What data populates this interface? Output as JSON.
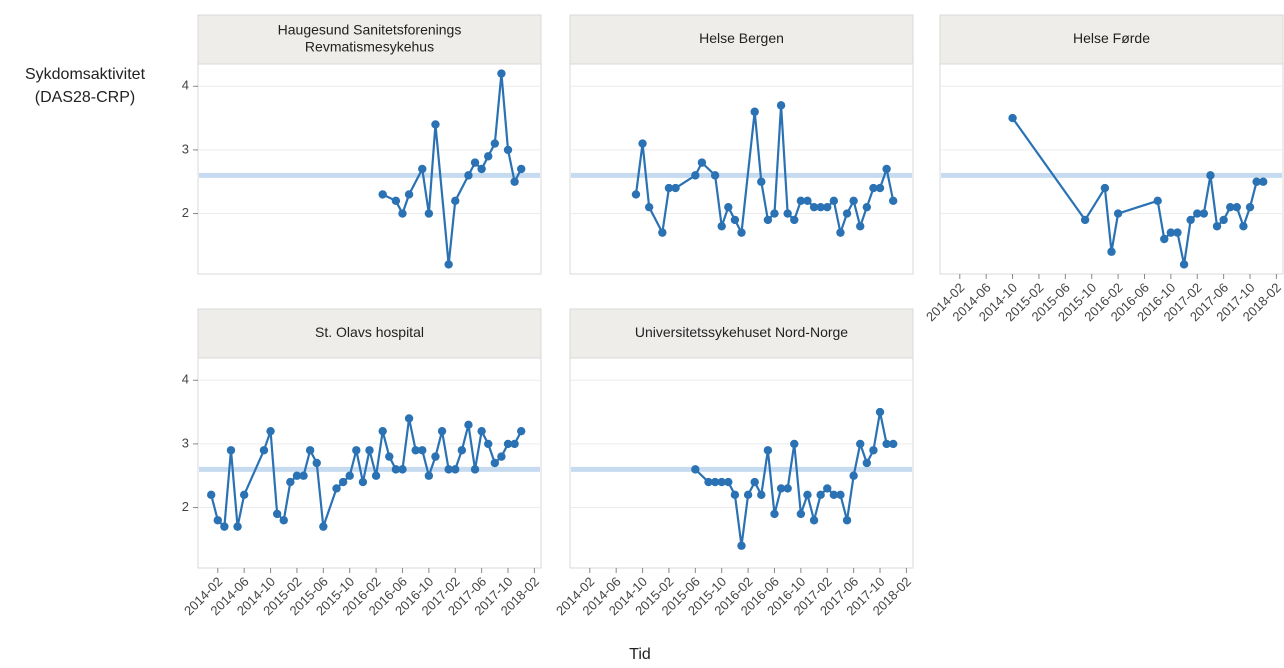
{
  "y_label": [
    "Sykdomsaktivitet",
    "(DAS28-CRP)"
  ],
  "x_label": "Tid",
  "reference_line": 2.6,
  "chart_data": [
    {
      "type": "line",
      "title": [
        "Haugesund Sanitetsforenings",
        "Revmatismesykehus"
      ],
      "color": "#2a72b3",
      "x": [
        "2016-03",
        "2016-05",
        "2016-06",
        "2016-07",
        "2016-09",
        "2016-10",
        "2016-11",
        "2017-01",
        "2017-02",
        "2017-04",
        "2017-05",
        "2017-06",
        "2017-07",
        "2017-08",
        "2017-09",
        "2017-10",
        "2017-11",
        "2017-12"
      ],
      "values": [
        2.3,
        2.2,
        2.0,
        2.3,
        2.7,
        2.0,
        3.4,
        1.2,
        2.2,
        2.6,
        2.8,
        2.7,
        2.9,
        3.1,
        4.2,
        3.0,
        2.5,
        2.7
      ],
      "xlim": [
        "2013-11",
        "2018-03"
      ],
      "ylim": [
        1.05,
        4.35
      ],
      "yticks": [
        2,
        3,
        4
      ],
      "y_tick_labels": true,
      "grid": true
    },
    {
      "type": "line",
      "title": "Helse Bergen",
      "color": "#2a72b3",
      "x": [
        "2014-09",
        "2014-10",
        "2014-11",
        "2015-01",
        "2015-02",
        "2015-03",
        "2015-06",
        "2015-07",
        "2015-09",
        "2015-10",
        "2015-11",
        "2015-12",
        "2016-01",
        "2016-03",
        "2016-04",
        "2016-05",
        "2016-06",
        "2016-07",
        "2016-08",
        "2016-09",
        "2016-10",
        "2016-11",
        "2016-12",
        "2017-01",
        "2017-02",
        "2017-03",
        "2017-04",
        "2017-05",
        "2017-06",
        "2017-07",
        "2017-08",
        "2017-09",
        "2017-10",
        "2017-11",
        "2017-12"
      ],
      "values": [
        2.3,
        3.1,
        2.1,
        1.7,
        2.4,
        2.4,
        2.6,
        2.8,
        2.6,
        1.8,
        2.1,
        1.9,
        1.7,
        3.6,
        2.5,
        1.9,
        2.0,
        3.7,
        2.0,
        1.9,
        2.2,
        2.2,
        2.1,
        2.1,
        2.1,
        2.2,
        1.7,
        2.0,
        2.2,
        1.8,
        2.1,
        2.4,
        2.4,
        2.7,
        2.2
      ],
      "xlim": [
        "2013-11",
        "2018-03"
      ],
      "ylim": [
        1.05,
        4.35
      ],
      "yticks": [
        2,
        3,
        4
      ],
      "y_tick_labels": false,
      "grid": true
    },
    {
      "type": "line",
      "title": "Helse Førde",
      "color": "#2a72b3",
      "x": [
        "2014-10",
        "2015-09",
        "2015-12",
        "2016-01",
        "2016-02",
        "2016-08",
        "2016-09",
        "2016-10",
        "2016-11",
        "2016-12",
        "2017-01",
        "2017-02",
        "2017-03",
        "2017-04",
        "2017-05",
        "2017-06",
        "2017-07",
        "2017-08",
        "2017-09",
        "2017-10",
        "2017-11",
        "2017-12"
      ],
      "values": [
        3.5,
        1.9,
        2.4,
        1.4,
        2.0,
        2.2,
        1.6,
        1.7,
        1.7,
        1.2,
        1.9,
        2.0,
        2.0,
        2.6,
        1.8,
        1.9,
        2.1,
        2.1,
        1.8,
        2.1,
        2.5,
        2.5
      ],
      "xlim": [
        "2013-11",
        "2018-03"
      ],
      "xticks": [
        "2014-02",
        "2014-06",
        "2014-10",
        "2015-02",
        "2015-06",
        "2015-10",
        "2016-02",
        "2016-06",
        "2016-10",
        "2017-02",
        "2017-06",
        "2017-10",
        "2018-02"
      ],
      "ylim": [
        1.05,
        4.35
      ],
      "yticks": [
        2,
        3,
        4
      ],
      "y_tick_labels": false,
      "grid": true
    },
    {
      "type": "line",
      "title": "St. Olavs hospital",
      "color": "#2a72b3",
      "x": [
        "2014-01",
        "2014-02",
        "2014-03",
        "2014-04",
        "2014-05",
        "2014-06",
        "2014-09",
        "2014-10",
        "2014-11",
        "2014-12",
        "2015-01",
        "2015-02",
        "2015-03",
        "2015-04",
        "2015-05",
        "2015-06",
        "2015-08",
        "2015-09",
        "2015-10",
        "2015-11",
        "2015-12",
        "2016-01",
        "2016-02",
        "2016-03",
        "2016-04",
        "2016-05",
        "2016-06",
        "2016-07",
        "2016-08",
        "2016-09",
        "2016-10",
        "2016-11",
        "2016-12",
        "2017-01",
        "2017-02",
        "2017-03",
        "2017-04",
        "2017-05",
        "2017-06",
        "2017-07",
        "2017-08",
        "2017-09",
        "2017-10",
        "2017-11",
        "2017-12"
      ],
      "values": [
        2.2,
        1.8,
        1.7,
        2.9,
        1.7,
        2.2,
        2.9,
        3.2,
        1.9,
        1.8,
        2.4,
        2.5,
        2.5,
        2.9,
        2.7,
        1.7,
        2.3,
        2.4,
        2.5,
        2.9,
        2.4,
        2.9,
        2.5,
        3.2,
        2.8,
        2.6,
        2.6,
        3.4,
        2.9,
        2.9,
        2.5,
        2.8,
        3.2,
        2.6,
        2.6,
        2.9,
        3.3,
        2.6,
        3.2,
        3.0,
        2.7,
        2.8,
        3.0,
        3.0,
        3.2
      ],
      "xlim": [
        "2013-11",
        "2018-03"
      ],
      "xticks": [
        "2014-02",
        "2014-06",
        "2014-10",
        "2015-02",
        "2015-06",
        "2015-10",
        "2016-02",
        "2016-06",
        "2016-10",
        "2017-02",
        "2017-06",
        "2017-10",
        "2018-02"
      ],
      "ylim": [
        1.05,
        4.35
      ],
      "yticks": [
        2,
        3,
        4
      ],
      "y_tick_labels": true,
      "grid": true
    },
    {
      "type": "line",
      "title": "Universitetssykehuset Nord-Norge",
      "color": "#2a72b3",
      "x": [
        "2015-06",
        "2015-08",
        "2015-09",
        "2015-10",
        "2015-11",
        "2015-12",
        "2016-01",
        "2016-02",
        "2016-03",
        "2016-04",
        "2016-05",
        "2016-06",
        "2016-07",
        "2016-08",
        "2016-09",
        "2016-10",
        "2016-11",
        "2016-12",
        "2017-01",
        "2017-02",
        "2017-03",
        "2017-04",
        "2017-05",
        "2017-06",
        "2017-07",
        "2017-08",
        "2017-09",
        "2017-10",
        "2017-11",
        "2017-12"
      ],
      "values": [
        2.6,
        2.4,
        2.4,
        2.4,
        2.4,
        2.2,
        1.4,
        2.2,
        2.4,
        2.2,
        2.9,
        1.9,
        2.3,
        2.3,
        3.0,
        1.9,
        2.2,
        1.8,
        2.2,
        2.3,
        2.2,
        2.2,
        1.8,
        2.5,
        3.0,
        2.7,
        2.9,
        3.5,
        3.0,
        3.0
      ],
      "xlim": [
        "2013-11",
        "2018-03"
      ],
      "xticks": [
        "2014-02",
        "2014-06",
        "2014-10",
        "2015-02",
        "2015-06",
        "2015-10",
        "2016-02",
        "2016-06",
        "2016-10",
        "2017-02",
        "2017-06",
        "2017-10",
        "2018-02"
      ],
      "ylim": [
        1.05,
        4.35
      ],
      "yticks": [
        2,
        3,
        4
      ],
      "y_tick_labels": false,
      "grid": true
    }
  ]
}
